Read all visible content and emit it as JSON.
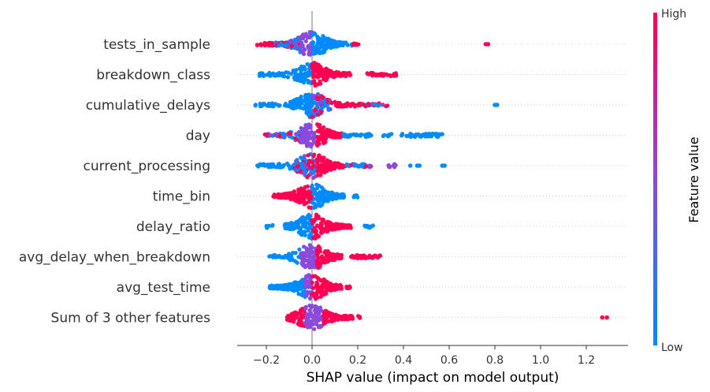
{
  "chart_data": {
    "type": "scatter",
    "subtype": "shap-beeswarm",
    "xlabel": "SHAP value (impact on model output)",
    "xlim": [
      -0.33,
      1.38
    ],
    "xticks": [
      -0.2,
      0.0,
      0.2,
      0.4,
      0.6,
      0.8,
      1.0,
      1.2
    ],
    "xtick_labels": [
      "−0.2",
      "0.0",
      "0.2",
      "0.4",
      "0.6",
      "0.8",
      "1.0",
      "1.2"
    ],
    "colorbar": {
      "title": "Feature value",
      "high_label": "High",
      "low_label": "Low",
      "low_color": "#008bfb",
      "high_color": "#ff0052"
    },
    "grid": false,
    "features": [
      {
        "name": "tests_in_sample",
        "segments": [
          [
            -0.24,
            -0.16,
            "high"
          ],
          [
            -0.16,
            -0.05,
            "mix"
          ],
          [
            -0.05,
            0.0,
            "mid"
          ],
          [
            0.0,
            0.1,
            "low"
          ],
          [
            0.1,
            0.18,
            "low"
          ],
          [
            0.18,
            0.21,
            "high"
          ]
        ],
        "outliers": [
          [
            0.76,
            "high"
          ],
          [
            0.77,
            "high"
          ]
        ]
      },
      {
        "name": "breakdown_class",
        "segments": [
          [
            -0.23,
            -0.08,
            "low"
          ],
          [
            -0.08,
            0.0,
            "low"
          ],
          [
            0.0,
            0.1,
            "high"
          ],
          [
            0.1,
            0.17,
            "high"
          ],
          [
            0.24,
            0.37,
            "high"
          ]
        ],
        "outliers": []
      },
      {
        "name": "cumulative_delays",
        "segments": [
          [
            -0.25,
            -0.1,
            "low"
          ],
          [
            -0.1,
            0.0,
            "low"
          ],
          [
            0.0,
            0.08,
            "mix"
          ],
          [
            0.08,
            0.22,
            "high"
          ],
          [
            0.22,
            0.33,
            "mix"
          ]
        ],
        "outliers": [
          [
            0.8,
            "low"
          ],
          [
            0.81,
            "low"
          ]
        ]
      },
      {
        "name": "day",
        "segments": [
          [
            -0.21,
            -0.05,
            "mix"
          ],
          [
            -0.05,
            0.02,
            "mid"
          ],
          [
            0.02,
            0.13,
            "high"
          ],
          [
            0.13,
            0.26,
            "low"
          ],
          [
            0.31,
            0.35,
            "low"
          ],
          [
            0.39,
            0.57,
            "low"
          ]
        ],
        "outliers": []
      },
      {
        "name": "current_processing",
        "segments": [
          [
            -0.24,
            -0.08,
            "low"
          ],
          [
            -0.08,
            0.02,
            "mix"
          ],
          [
            0.02,
            0.14,
            "high"
          ],
          [
            0.14,
            0.26,
            "mix"
          ],
          [
            0.33,
            0.37,
            "mid"
          ]
        ],
        "outliers": [
          [
            0.43,
            "low"
          ],
          [
            0.46,
            "low"
          ],
          [
            0.47,
            "low"
          ],
          [
            0.57,
            "low"
          ],
          [
            0.58,
            "low"
          ]
        ]
      },
      {
        "name": "time_bin",
        "segments": [
          [
            -0.17,
            -0.0,
            "high"
          ],
          [
            -0.0,
            0.14,
            "low"
          ],
          [
            0.18,
            0.2,
            "low"
          ]
        ],
        "outliers": []
      },
      {
        "name": "delay_ratio",
        "segments": [
          [
            -0.2,
            -0.17,
            "low"
          ],
          [
            -0.12,
            0.0,
            "low"
          ],
          [
            0.0,
            0.17,
            "high"
          ],
          [
            0.23,
            0.27,
            "low"
          ]
        ],
        "outliers": []
      },
      {
        "name": "avg_delay_when_breakdown",
        "segments": [
          [
            -0.19,
            -0.05,
            "low"
          ],
          [
            -0.05,
            0.02,
            "mid"
          ],
          [
            0.02,
            0.13,
            "high"
          ],
          [
            0.17,
            0.3,
            "high"
          ]
        ],
        "outliers": []
      },
      {
        "name": "avg_test_time",
        "segments": [
          [
            -0.19,
            -0.03,
            "low"
          ],
          [
            -0.03,
            0.0,
            "mid"
          ],
          [
            0.0,
            0.13,
            "high"
          ],
          [
            0.15,
            0.17,
            "high"
          ]
        ],
        "outliers": []
      },
      {
        "name": "Sum of 3 other features",
        "segments": [
          [
            -0.11,
            -0.03,
            "high"
          ],
          [
            -0.03,
            0.05,
            "mid"
          ],
          [
            0.05,
            0.18,
            "high"
          ],
          [
            0.2,
            0.21,
            "high"
          ]
        ],
        "outliers": [
          [
            1.27,
            "high"
          ],
          [
            1.29,
            "high"
          ]
        ]
      }
    ]
  }
}
